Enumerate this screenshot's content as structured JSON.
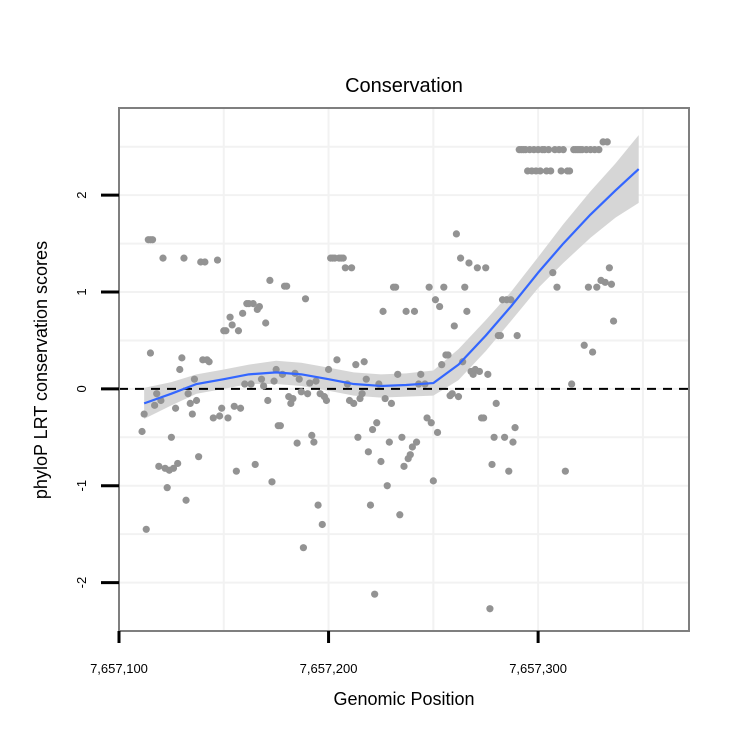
{
  "chart_data": {
    "type": "scatter",
    "title": "Conservation",
    "xlabel": "Genomic Position",
    "ylabel": "phyloP LRT conservation scores",
    "xlim": [
      7657100,
      7657372
    ],
    "ylim": [
      -2.5,
      2.9
    ],
    "xticks": [
      7657100,
      7657200,
      7657300
    ],
    "xtick_labels": [
      "7,657,100",
      "7,657,200",
      "7,657,300"
    ],
    "yticks": [
      -2,
      -1,
      0,
      1,
      2
    ],
    "ytick_labels": [
      "-2",
      "-1",
      "0",
      "1",
      "2"
    ],
    "grid": true,
    "reference_line_y": 0,
    "points": [
      [
        7657111,
        -0.44
      ],
      [
        7657112,
        -0.26
      ],
      [
        7657113,
        -1.45
      ],
      [
        7657114,
        1.54
      ],
      [
        7657115,
        1.54
      ],
      [
        7657116,
        1.54
      ],
      [
        7657115,
        0.37
      ],
      [
        7657117,
        -0.17
      ],
      [
        7657118,
        -0.05
      ],
      [
        7657119,
        -0.8
      ],
      [
        7657120,
        -0.12
      ],
      [
        7657121,
        1.35
      ],
      [
        7657122,
        -0.82
      ],
      [
        7657123,
        -1.02
      ],
      [
        7657124,
        -0.84
      ],
      [
        7657125,
        -0.5
      ],
      [
        7657126,
        -0.82
      ],
      [
        7657127,
        -0.2
      ],
      [
        7657128,
        -0.77
      ],
      [
        7657129,
        0.2
      ],
      [
        7657130,
        0.32
      ],
      [
        7657131,
        1.35
      ],
      [
        7657132,
        -1.15
      ],
      [
        7657133,
        -0.05
      ],
      [
        7657134,
        -0.15
      ],
      [
        7657135,
        -0.26
      ],
      [
        7657136,
        0.1
      ],
      [
        7657137,
        -0.12
      ],
      [
        7657138,
        -0.7
      ],
      [
        7657139,
        1.31
      ],
      [
        7657140,
        0.3
      ],
      [
        7657141,
        1.31
      ],
      [
        7657142,
        0.3
      ],
      [
        7657143,
        0.28
      ],
      [
        7657145,
        -0.3
      ],
      [
        7657147,
        1.33
      ],
      [
        7657148,
        -0.28
      ],
      [
        7657149,
        -0.2
      ],
      [
        7657150,
        0.6
      ],
      [
        7657151,
        0.6
      ],
      [
        7657152,
        -0.3
      ],
      [
        7657153,
        0.74
      ],
      [
        7657154,
        0.66
      ],
      [
        7657155,
        -0.18
      ],
      [
        7657156,
        -0.85
      ],
      [
        7657157,
        0.6
      ],
      [
        7657158,
        -0.2
      ],
      [
        7657159,
        0.78
      ],
      [
        7657160,
        0.05
      ],
      [
        7657161,
        0.88
      ],
      [
        7657162,
        0.88
      ],
      [
        7657163,
        0.05
      ],
      [
        7657164,
        0.88
      ],
      [
        7657165,
        -0.78
      ],
      [
        7657166,
        0.82
      ],
      [
        7657167,
        0.85
      ],
      [
        7657168,
        0.1
      ],
      [
        7657169,
        0.03
      ],
      [
        7657170,
        0.68
      ],
      [
        7657171,
        -0.12
      ],
      [
        7657172,
        1.12
      ],
      [
        7657173,
        -0.96
      ],
      [
        7657174,
        0.08
      ],
      [
        7657175,
        0.2
      ],
      [
        7657176,
        -0.38
      ],
      [
        7657177,
        -0.38
      ],
      [
        7657178,
        0.15
      ],
      [
        7657179,
        1.06
      ],
      [
        7657180,
        1.06
      ],
      [
        7657181,
        -0.08
      ],
      [
        7657182,
        -0.15
      ],
      [
        7657183,
        -0.1
      ],
      [
        7657184,
        0.16
      ],
      [
        7657185,
        -0.56
      ],
      [
        7657186,
        0.1
      ],
      [
        7657187,
        -0.03
      ],
      [
        7657188,
        -1.64
      ],
      [
        7657189,
        0.93
      ],
      [
        7657190,
        -0.05
      ],
      [
        7657191,
        0.06
      ],
      [
        7657192,
        -0.48
      ],
      [
        7657193,
        -0.55
      ],
      [
        7657194,
        0.08
      ],
      [
        7657195,
        -1.2
      ],
      [
        7657196,
        -0.05
      ],
      [
        7657197,
        -1.4
      ],
      [
        7657198,
        -0.08
      ],
      [
        7657199,
        -0.12
      ],
      [
        7657200,
        0.2
      ],
      [
        7657201,
        1.35
      ],
      [
        7657202,
        1.35
      ],
      [
        7657203,
        1.35
      ],
      [
        7657204,
        0.3
      ],
      [
        7657205,
        1.35
      ],
      [
        7657206,
        1.35
      ],
      [
        7657207,
        1.35
      ],
      [
        7657208,
        1.25
      ],
      [
        7657209,
        0.05
      ],
      [
        7657210,
        -0.12
      ],
      [
        7657211,
        1.25
      ],
      [
        7657212,
        -0.15
      ],
      [
        7657213,
        0.25
      ],
      [
        7657214,
        -0.5
      ],
      [
        7657215,
        -0.1
      ],
      [
        7657216,
        -0.05
      ],
      [
        7657217,
        0.28
      ],
      [
        7657218,
        0.1
      ],
      [
        7657219,
        -0.65
      ],
      [
        7657220,
        -1.2
      ],
      [
        7657221,
        -0.42
      ],
      [
        7657222,
        -2.12
      ],
      [
        7657223,
        -0.35
      ],
      [
        7657224,
        0.05
      ],
      [
        7657225,
        -0.75
      ],
      [
        7657226,
        0.8
      ],
      [
        7657227,
        -0.1
      ],
      [
        7657228,
        -1.0
      ],
      [
        7657229,
        -0.55
      ],
      [
        7657230,
        -0.15
      ],
      [
        7657231,
        1.05
      ],
      [
        7657232,
        1.05
      ],
      [
        7657233,
        0.15
      ],
      [
        7657234,
        -1.3
      ],
      [
        7657235,
        -0.5
      ],
      [
        7657236,
        -0.8
      ],
      [
        7657237,
        0.8
      ],
      [
        7657238,
        -0.72
      ],
      [
        7657239,
        -0.68
      ],
      [
        7657240,
        -0.6
      ],
      [
        7657241,
        0.8
      ],
      [
        7657242,
        -0.55
      ],
      [
        7657243,
        0.05
      ],
      [
        7657244,
        0.15
      ],
      [
        7657246,
        0.05
      ],
      [
        7657247,
        -0.3
      ],
      [
        7657248,
        1.05
      ],
      [
        7657249,
        -0.35
      ],
      [
        7657250,
        -0.95
      ],
      [
        7657251,
        0.92
      ],
      [
        7657252,
        -0.45
      ],
      [
        7657253,
        0.85
      ],
      [
        7657254,
        0.25
      ],
      [
        7657255,
        1.05
      ],
      [
        7657256,
        0.35
      ],
      [
        7657257,
        0.35
      ],
      [
        7657258,
        -0.07
      ],
      [
        7657259,
        -0.05
      ],
      [
        7657260,
        0.65
      ],
      [
        7657261,
        1.6
      ],
      [
        7657262,
        -0.08
      ],
      [
        7657263,
        1.35
      ],
      [
        7657264,
        0.28
      ],
      [
        7657265,
        1.05
      ],
      [
        7657266,
        0.8
      ],
      [
        7657267,
        1.3
      ],
      [
        7657268,
        0.18
      ],
      [
        7657269,
        0.15
      ],
      [
        7657270,
        0.2
      ],
      [
        7657271,
        1.25
      ],
      [
        7657272,
        0.18
      ],
      [
        7657273,
        -0.3
      ],
      [
        7657274,
        -0.3
      ],
      [
        7657275,
        1.25
      ],
      [
        7657276,
        0.15
      ],
      [
        7657277,
        -2.27
      ],
      [
        7657278,
        -0.78
      ],
      [
        7657279,
        -0.5
      ],
      [
        7657280,
        -0.15
      ],
      [
        7657281,
        0.55
      ],
      [
        7657282,
        0.55
      ],
      [
        7657283,
        0.92
      ],
      [
        7657284,
        -0.5
      ],
      [
        7657285,
        0.92
      ],
      [
        7657286,
        -0.85
      ],
      [
        7657287,
        0.92
      ],
      [
        7657288,
        -0.55
      ],
      [
        7657289,
        -0.4
      ],
      [
        7657290,
        0.55
      ],
      [
        7657291,
        2.47
      ],
      [
        7657292,
        2.47
      ],
      [
        7657293,
        2.47
      ],
      [
        7657294,
        2.47
      ],
      [
        7657295,
        2.25
      ],
      [
        7657296,
        2.47
      ],
      [
        7657297,
        2.25
      ],
      [
        7657298,
        2.47
      ],
      [
        7657299,
        2.25
      ],
      [
        7657300,
        2.47
      ],
      [
        7657301,
        2.25
      ],
      [
        7657302,
        2.47
      ],
      [
        7657303,
        2.47
      ],
      [
        7657304,
        2.25
      ],
      [
        7657305,
        2.47
      ],
      [
        7657306,
        2.25
      ],
      [
        7657307,
        1.2
      ],
      [
        7657308,
        2.47
      ],
      [
        7657309,
        1.05
      ],
      [
        7657310,
        2.47
      ],
      [
        7657311,
        2.25
      ],
      [
        7657312,
        2.47
      ],
      [
        7657313,
        -0.85
      ],
      [
        7657314,
        2.25
      ],
      [
        7657315,
        2.25
      ],
      [
        7657316,
        0.05
      ],
      [
        7657317,
        2.47
      ],
      [
        7657318,
        2.47
      ],
      [
        7657319,
        2.47
      ],
      [
        7657320,
        2.47
      ],
      [
        7657321,
        2.47
      ],
      [
        7657322,
        0.45
      ],
      [
        7657323,
        2.47
      ],
      [
        7657324,
        1.05
      ],
      [
        7657325,
        2.47
      ],
      [
        7657326,
        0.38
      ],
      [
        7657327,
        2.47
      ],
      [
        7657328,
        1.05
      ],
      [
        7657329,
        2.47
      ],
      [
        7657330,
        1.12
      ],
      [
        7657331,
        2.55
      ],
      [
        7657332,
        1.1
      ],
      [
        7657333,
        2.55
      ],
      [
        7657334,
        1.25
      ],
      [
        7657335,
        1.08
      ],
      [
        7657336,
        0.7
      ]
    ],
    "smooth": {
      "x": [
        7657112,
        7657125,
        7657137,
        7657150,
        7657162,
        7657175,
        7657187,
        7657200,
        7657212,
        7657225,
        7657237,
        7657250,
        7657262,
        7657275,
        7657287,
        7657300,
        7657312,
        7657325,
        7657337,
        7657348
      ],
      "y": [
        -0.15,
        -0.05,
        0.05,
        0.1,
        0.15,
        0.17,
        0.15,
        0.1,
        0.05,
        0.03,
        0.04,
        0.06,
        0.25,
        0.55,
        0.85,
        1.2,
        1.5,
        1.8,
        2.05,
        2.27
      ],
      "ci_half_width": [
        0.16,
        0.12,
        0.1,
        0.1,
        0.1,
        0.12,
        0.12,
        0.12,
        0.12,
        0.12,
        0.12,
        0.13,
        0.16,
        0.16,
        0.15,
        0.16,
        0.2,
        0.24,
        0.28,
        0.35
      ]
    },
    "colors": {
      "points": "#939393",
      "smooth_line": "#3366ff",
      "ci_band": "#d4d4d4",
      "grid": "#f2f2f2",
      "panel_border": "#7f7f7f"
    }
  }
}
